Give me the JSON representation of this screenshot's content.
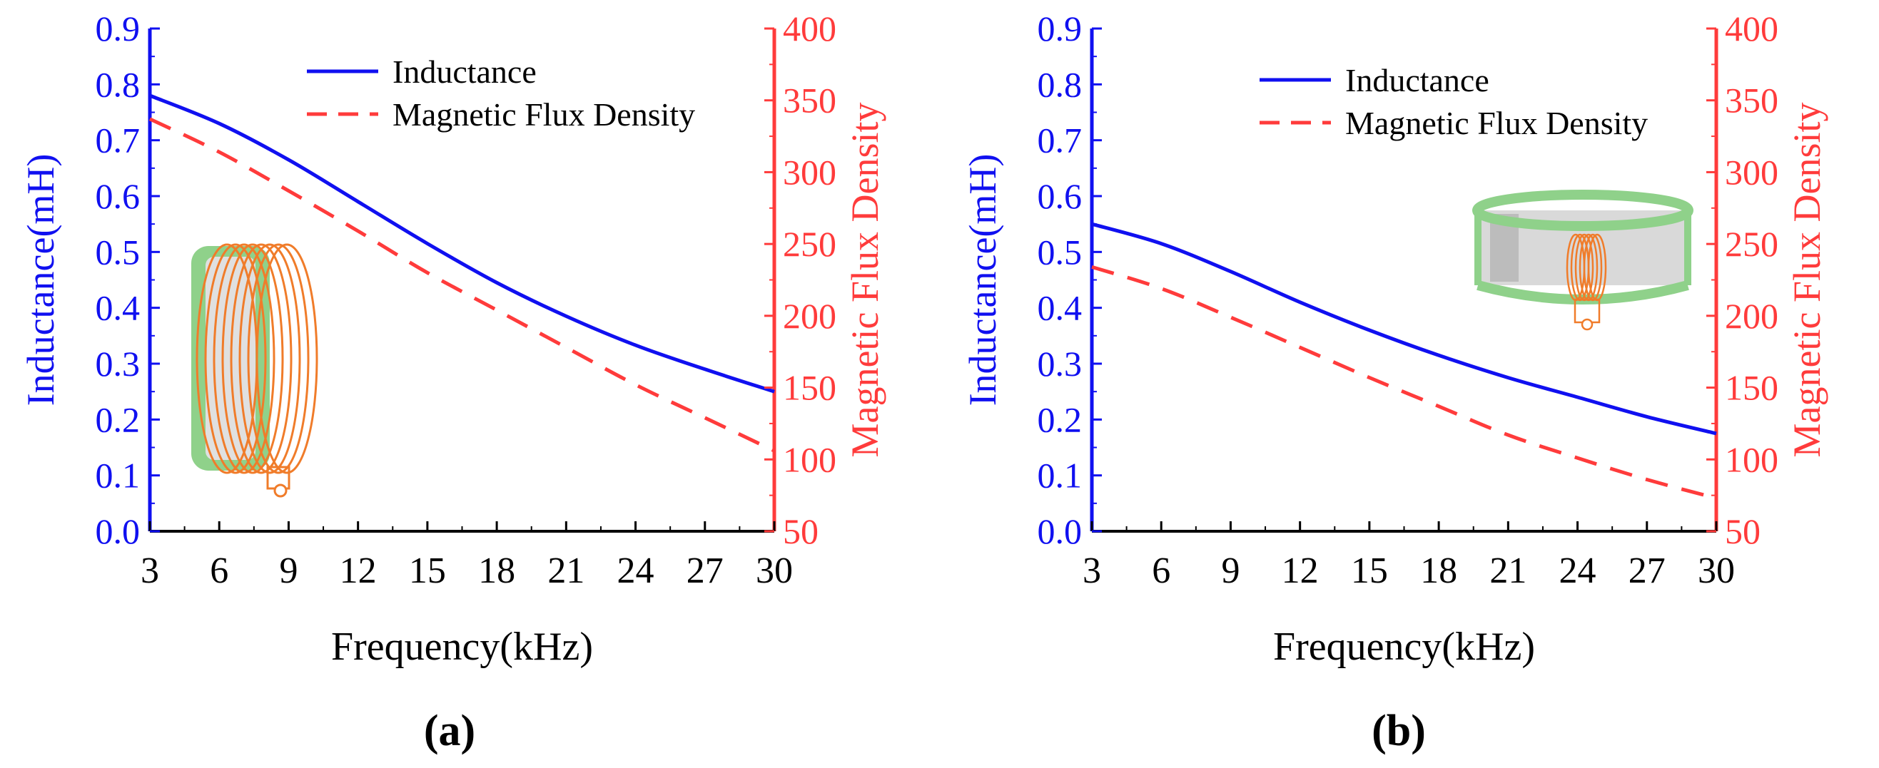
{
  "colors": {
    "inductance": "#1010f0",
    "flux": "#ff3b3b",
    "axis_black": "#000000",
    "inset_ring": "#8fd18a",
    "inset_coil": "#f07c2a",
    "inset_core": "#d6d6d6"
  },
  "chart_data": [
    {
      "type": "line",
      "panel_label": "(a)",
      "xlabel": "Frequency(kHz)",
      "ylabel_left": "Inductance(mH)",
      "ylabel_right": "Magnetic Flux Density",
      "xlim": [
        3,
        30
      ],
      "ylim_left": [
        0,
        0.9
      ],
      "ylim_right": [
        50,
        400
      ],
      "xticks": [
        3,
        6,
        9,
        12,
        15,
        18,
        21,
        24,
        27,
        30
      ],
      "yticks_left": [
        "0.0",
        "0.1",
        "0.2",
        "0.3",
        "0.4",
        "0.5",
        "0.6",
        "0.7",
        "0.8",
        "0.9"
      ],
      "yticks_right": [
        50,
        100,
        150,
        200,
        250,
        300,
        350,
        400
      ],
      "legend_position": "top-right",
      "inset": "coil-wound-ring-side",
      "series": [
        {
          "name": "Inductance",
          "axis": "left",
          "style": "solid",
          "x": [
            3,
            6,
            9,
            12,
            15,
            18,
            21,
            24,
            27,
            30
          ],
          "values": [
            0.78,
            0.73,
            0.665,
            0.59,
            0.515,
            0.445,
            0.385,
            0.333,
            0.29,
            0.25
          ]
        },
        {
          "name": "Magnetic Flux Density",
          "axis": "right",
          "style": "dashed",
          "x": [
            3,
            6,
            9,
            12,
            15,
            18,
            21,
            24,
            27,
            30
          ],
          "values": [
            337,
            314,
            287,
            259,
            230,
            204,
            178,
            152,
            129,
            106
          ]
        }
      ]
    },
    {
      "type": "line",
      "panel_label": "(b)",
      "xlabel": "Frequency(kHz)",
      "ylabel_left": "Inductance(mH)",
      "ylabel_right": "Magnetic Flux Density",
      "xlim": [
        3,
        30
      ],
      "ylim_left": [
        0,
        0.9
      ],
      "ylim_right": [
        50,
        400
      ],
      "xticks": [
        3,
        6,
        9,
        12,
        15,
        18,
        21,
        24,
        27,
        30
      ],
      "yticks_left": [
        "0.0",
        "0.1",
        "0.2",
        "0.3",
        "0.4",
        "0.5",
        "0.6",
        "0.7",
        "0.8",
        "0.9"
      ],
      "yticks_right": [
        50,
        100,
        150,
        200,
        250,
        300,
        350,
        400
      ],
      "legend_position": "top-right",
      "inset": "coil-on-ring-top",
      "series": [
        {
          "name": "Inductance",
          "axis": "left",
          "style": "solid",
          "x": [
            3,
            6,
            9,
            12,
            15,
            18,
            21,
            24,
            27,
            30
          ],
          "values": [
            0.55,
            0.515,
            0.465,
            0.41,
            0.36,
            0.315,
            0.275,
            0.24,
            0.205,
            0.175
          ]
        },
        {
          "name": "Magnetic Flux Density",
          "axis": "right",
          "style": "dashed",
          "x": [
            3,
            6,
            9,
            12,
            15,
            18,
            21,
            24,
            27,
            30
          ],
          "values": [
            234,
            219,
            199,
            178,
            157,
            137,
            117,
            101,
            86,
            73
          ]
        }
      ]
    }
  ]
}
